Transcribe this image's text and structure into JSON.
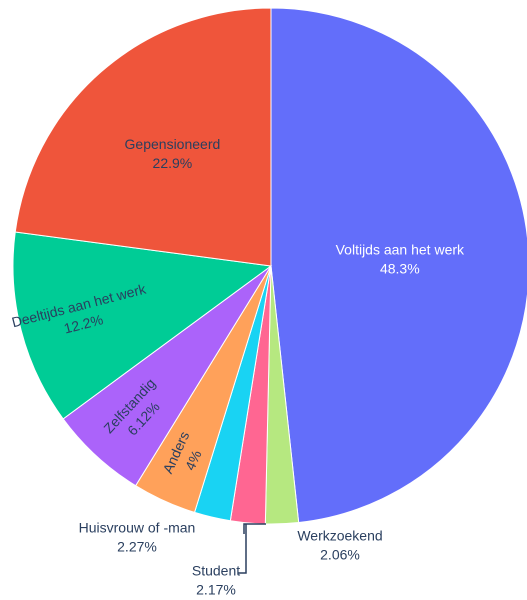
{
  "chart_data": {
    "type": "pie",
    "direction": "clockwise",
    "start": "top",
    "slices": [
      {
        "label": "Voltijds aan het werk",
        "value": 48.3,
        "text": "48.3%",
        "color": "#636efa",
        "label_position": "inside",
        "text_color": "#ffffff"
      },
      {
        "label": "Werkzoekend",
        "value": 2.06,
        "text": "2.06%",
        "color": "#b6e880",
        "label_position": "outside",
        "text_color": "#2a3f5f"
      },
      {
        "label": "Student",
        "value": 2.17,
        "text": "2.17%",
        "color": "#ff6692",
        "label_position": "outside",
        "text_color": "#2a3f5f"
      },
      {
        "label": "Huisvrouw of -man",
        "value": 2.27,
        "text": "2.27%",
        "color": "#19d3f3",
        "label_position": "outside",
        "text_color": "#2a3f5f"
      },
      {
        "label": "Anders",
        "value": 4.0,
        "text": "4%",
        "color": "#ffa15a",
        "label_position": "inside-rotated",
        "text_color": "#2a3f5f"
      },
      {
        "label": "Zelfstandig",
        "value": 6.12,
        "text": "6.12%",
        "color": "#ab63fa",
        "label_position": "inside-rotated",
        "text_color": "#2a3f5f"
      },
      {
        "label": "Deeltijds aan het werk",
        "value": 12.2,
        "text": "12.2%",
        "color": "#00cc96",
        "label_position": "inside-rotated",
        "text_color": "#2a3f5f"
      },
      {
        "label": "Gepensioneerd",
        "value": 22.9,
        "text": "22.9%",
        "color": "#ef553b",
        "label_position": "inside",
        "text_color": "#2a3f5f"
      }
    ]
  }
}
